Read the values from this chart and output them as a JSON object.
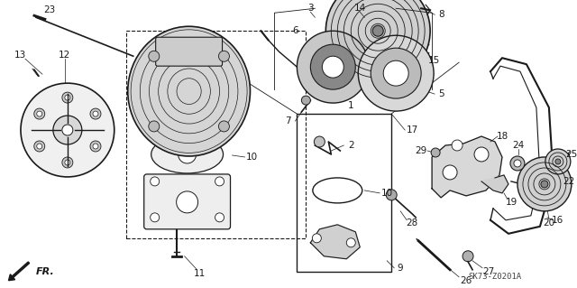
{
  "background_color": "#ffffff",
  "line_color": "#1a1a1a",
  "text_color": "#1a1a1a",
  "font_size": 7.5,
  "watermark": "SK73-Z0201A",
  "figsize": [
    6.4,
    3.19
  ],
  "dpi": 100
}
